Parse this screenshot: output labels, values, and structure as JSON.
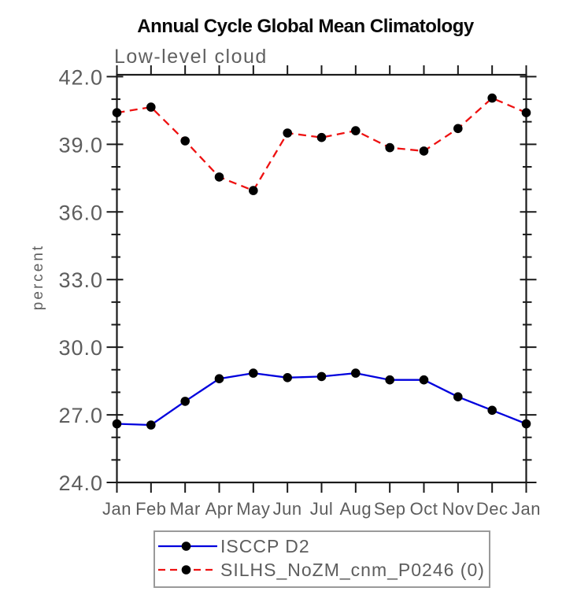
{
  "chart_data": {
    "type": "line",
    "title": "Annual Cycle Global Mean Climatology",
    "subtitle": "Low-level cloud",
    "xlabel": "",
    "ylabel": "percent",
    "x_categories": [
      "Jan",
      "Feb",
      "Mar",
      "Apr",
      "May",
      "Jun",
      "Jul",
      "Aug",
      "Sep",
      "Oct",
      "Nov",
      "Dec",
      "Jan"
    ],
    "ylim": [
      24.0,
      42.0
    ],
    "ytick_major_step": 3.0,
    "ytick_minor_step": 1.0,
    "ytick_labels": [
      "24.0",
      "27.0",
      "30.0",
      "33.0",
      "36.0",
      "39.0",
      "42.0"
    ],
    "grid": false,
    "legend_position": "bottom-outside",
    "axis_color": "#1a1a1a",
    "legend_border_color": "#9a9a9a",
    "series": [
      {
        "name": "ISCCP D2",
        "color": "#0000dd",
        "line_style": "solid",
        "marker": "filled-circle",
        "marker_color": "#000000",
        "values": [
          26.6,
          26.55,
          27.6,
          28.6,
          28.85,
          28.65,
          28.7,
          28.85,
          28.55,
          28.55,
          27.8,
          27.2,
          26.6
        ]
      },
      {
        "name": "SILHS_NoZM_cnm_P0246 (0)",
        "color": "#ee1111",
        "line_style": "dashed",
        "marker": "filled-circle",
        "marker_color": "#000000",
        "values": [
          40.4,
          40.65,
          39.15,
          37.55,
          36.95,
          39.5,
          39.3,
          39.6,
          38.85,
          38.7,
          39.7,
          41.05,
          40.4
        ]
      }
    ]
  }
}
